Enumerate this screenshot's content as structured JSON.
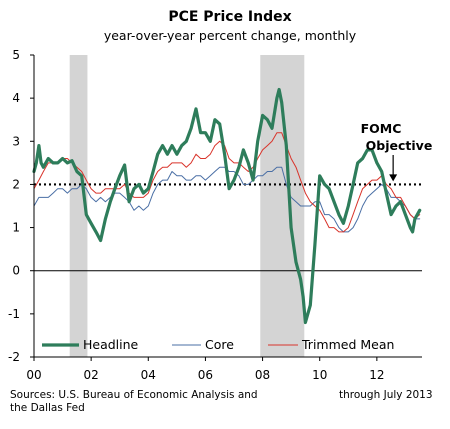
{
  "chart_data": {
    "type": "line",
    "title": "PCE Price Index",
    "subtitle": "year-over-year percent change, monthly",
    "xlabel": "",
    "ylabel": "",
    "xlim": [
      2000.0,
      2013.58
    ],
    "ylim": [
      -2,
      5
    ],
    "y_ticks": [
      "-2",
      "-1",
      "0",
      "1",
      "2",
      "3",
      "4",
      "5"
    ],
    "x_ticks": [
      "00",
      "02",
      "04",
      "06",
      "08",
      "10",
      "12"
    ],
    "x_tick_years": [
      2000,
      2002,
      2004,
      2006,
      2008,
      2010,
      2012
    ],
    "grid": false,
    "legend_position": "bottom",
    "recessions": [
      [
        2001.25,
        2001.87
      ],
      [
        2007.92,
        2009.46
      ]
    ],
    "reference_line": {
      "value": 2,
      "style": "dotted"
    },
    "series": [
      {
        "name": "Headline",
        "color": "#2e7d5b",
        "width": 3.2,
        "points": [
          [
            2000.0,
            2.3
          ],
          [
            2000.08,
            2.5
          ],
          [
            2000.17,
            2.9
          ],
          [
            2000.25,
            2.5
          ],
          [
            2000.33,
            2.4
          ],
          [
            2000.5,
            2.6
          ],
          [
            2000.67,
            2.5
          ],
          [
            2000.83,
            2.5
          ],
          [
            2001.0,
            2.6
          ],
          [
            2001.17,
            2.5
          ],
          [
            2001.33,
            2.55
          ],
          [
            2001.5,
            2.3
          ],
          [
            2001.67,
            2.2
          ],
          [
            2001.83,
            1.3
          ],
          [
            2002.0,
            1.1
          ],
          [
            2002.17,
            0.9
          ],
          [
            2002.33,
            0.7
          ],
          [
            2002.5,
            1.2
          ],
          [
            2002.67,
            1.6
          ],
          [
            2002.83,
            1.9
          ],
          [
            2003.0,
            2.2
          ],
          [
            2003.17,
            2.45
          ],
          [
            2003.33,
            1.6
          ],
          [
            2003.5,
            1.9
          ],
          [
            2003.67,
            2.0
          ],
          [
            2003.83,
            1.8
          ],
          [
            2004.0,
            1.9
          ],
          [
            2004.17,
            2.3
          ],
          [
            2004.33,
            2.7
          ],
          [
            2004.5,
            2.9
          ],
          [
            2004.67,
            2.7
          ],
          [
            2004.83,
            2.9
          ],
          [
            2005.0,
            2.7
          ],
          [
            2005.17,
            2.9
          ],
          [
            2005.33,
            3.0
          ],
          [
            2005.5,
            3.3
          ],
          [
            2005.67,
            3.75
          ],
          [
            2005.83,
            3.2
          ],
          [
            2006.0,
            3.2
          ],
          [
            2006.17,
            3.0
          ],
          [
            2006.33,
            3.5
          ],
          [
            2006.5,
            3.4
          ],
          [
            2006.67,
            2.7
          ],
          [
            2006.83,
            1.9
          ],
          [
            2007.0,
            2.1
          ],
          [
            2007.17,
            2.4
          ],
          [
            2007.33,
            2.8
          ],
          [
            2007.5,
            2.5
          ],
          [
            2007.67,
            2.1
          ],
          [
            2007.83,
            3.0
          ],
          [
            2008.0,
            3.6
          ],
          [
            2008.17,
            3.5
          ],
          [
            2008.33,
            3.3
          ],
          [
            2008.5,
            4.0
          ],
          [
            2008.58,
            4.2
          ],
          [
            2008.67,
            3.9
          ],
          [
            2008.83,
            2.9
          ],
          [
            2009.0,
            1.0
          ],
          [
            2009.17,
            0.2
          ],
          [
            2009.33,
            -0.2
          ],
          [
            2009.42,
            -0.6
          ],
          [
            2009.5,
            -1.2
          ],
          [
            2009.67,
            -0.8
          ],
          [
            2009.83,
            0.6
          ],
          [
            2010.0,
            2.2
          ],
          [
            2010.17,
            2.0
          ],
          [
            2010.33,
            1.9
          ],
          [
            2010.5,
            1.6
          ],
          [
            2010.67,
            1.3
          ],
          [
            2010.83,
            1.1
          ],
          [
            2011.0,
            1.5
          ],
          [
            2011.17,
            2.0
          ],
          [
            2011.33,
            2.5
          ],
          [
            2011.5,
            2.6
          ],
          [
            2011.67,
            2.8
          ],
          [
            2011.83,
            2.8
          ],
          [
            2012.0,
            2.5
          ],
          [
            2012.17,
            2.3
          ],
          [
            2012.33,
            1.8
          ],
          [
            2012.5,
            1.3
          ],
          [
            2012.67,
            1.5
          ],
          [
            2012.83,
            1.6
          ],
          [
            2013.0,
            1.3
          ],
          [
            2013.17,
            1.0
          ],
          [
            2013.25,
            0.9
          ],
          [
            2013.33,
            1.2
          ],
          [
            2013.5,
            1.4
          ]
        ]
      },
      {
        "name": "Core",
        "color": "#4a6fa5",
        "width": 1,
        "points": [
          [
            2000.0,
            1.5
          ],
          [
            2000.17,
            1.7
          ],
          [
            2000.33,
            1.7
          ],
          [
            2000.5,
            1.7
          ],
          [
            2000.67,
            1.8
          ],
          [
            2000.83,
            1.9
          ],
          [
            2001.0,
            1.9
          ],
          [
            2001.17,
            1.8
          ],
          [
            2001.33,
            1.9
          ],
          [
            2001.5,
            1.9
          ],
          [
            2001.67,
            2.0
          ],
          [
            2001.83,
            1.9
          ],
          [
            2002.0,
            1.7
          ],
          [
            2002.17,
            1.6
          ],
          [
            2002.33,
            1.7
          ],
          [
            2002.5,
            1.6
          ],
          [
            2002.67,
            1.7
          ],
          [
            2002.83,
            1.8
          ],
          [
            2003.0,
            1.8
          ],
          [
            2003.17,
            1.7
          ],
          [
            2003.33,
            1.6
          ],
          [
            2003.5,
            1.4
          ],
          [
            2003.67,
            1.5
          ],
          [
            2003.83,
            1.4
          ],
          [
            2004.0,
            1.5
          ],
          [
            2004.17,
            1.8
          ],
          [
            2004.33,
            2.0
          ],
          [
            2004.5,
            2.1
          ],
          [
            2004.67,
            2.1
          ],
          [
            2004.83,
            2.3
          ],
          [
            2005.0,
            2.2
          ],
          [
            2005.17,
            2.2
          ],
          [
            2005.33,
            2.1
          ],
          [
            2005.5,
            2.1
          ],
          [
            2005.67,
            2.2
          ],
          [
            2005.83,
            2.2
          ],
          [
            2006.0,
            2.1
          ],
          [
            2006.17,
            2.2
          ],
          [
            2006.33,
            2.3
          ],
          [
            2006.5,
            2.4
          ],
          [
            2006.67,
            2.4
          ],
          [
            2006.83,
            2.3
          ],
          [
            2007.0,
            2.3
          ],
          [
            2007.17,
            2.2
          ],
          [
            2007.33,
            2.0
          ],
          [
            2007.5,
            2.0
          ],
          [
            2007.67,
            2.1
          ],
          [
            2007.83,
            2.2
          ],
          [
            2008.0,
            2.2
          ],
          [
            2008.17,
            2.3
          ],
          [
            2008.33,
            2.3
          ],
          [
            2008.5,
            2.4
          ],
          [
            2008.67,
            2.4
          ],
          [
            2008.83,
            2.0
          ],
          [
            2009.0,
            1.7
          ],
          [
            2009.17,
            1.6
          ],
          [
            2009.33,
            1.5
          ],
          [
            2009.5,
            1.5
          ],
          [
            2009.67,
            1.5
          ],
          [
            2009.83,
            1.6
          ],
          [
            2010.0,
            1.6
          ],
          [
            2010.17,
            1.3
          ],
          [
            2010.33,
            1.3
          ],
          [
            2010.5,
            1.2
          ],
          [
            2010.67,
            1.0
          ],
          [
            2010.83,
            0.9
          ],
          [
            2011.0,
            0.9
          ],
          [
            2011.17,
            1.0
          ],
          [
            2011.33,
            1.2
          ],
          [
            2011.5,
            1.5
          ],
          [
            2011.67,
            1.7
          ],
          [
            2011.83,
            1.8
          ],
          [
            2012.0,
            1.9
          ],
          [
            2012.17,
            2.0
          ],
          [
            2012.33,
            1.9
          ],
          [
            2012.5,
            1.7
          ],
          [
            2012.67,
            1.7
          ],
          [
            2012.83,
            1.6
          ],
          [
            2013.0,
            1.5
          ],
          [
            2013.17,
            1.3
          ],
          [
            2013.33,
            1.2
          ],
          [
            2013.5,
            1.2
          ]
        ]
      },
      {
        "name": "Trimmed Mean",
        "color": "#d9342b",
        "width": 1,
        "points": [
          [
            2000.0,
            1.9
          ],
          [
            2000.17,
            2.1
          ],
          [
            2000.33,
            2.3
          ],
          [
            2000.5,
            2.5
          ],
          [
            2000.67,
            2.5
          ],
          [
            2000.83,
            2.5
          ],
          [
            2001.0,
            2.6
          ],
          [
            2001.17,
            2.6
          ],
          [
            2001.33,
            2.5
          ],
          [
            2001.5,
            2.4
          ],
          [
            2001.67,
            2.3
          ],
          [
            2001.83,
            2.1
          ],
          [
            2002.0,
            1.9
          ],
          [
            2002.17,
            1.8
          ],
          [
            2002.33,
            1.8
          ],
          [
            2002.5,
            1.9
          ],
          [
            2002.67,
            1.9
          ],
          [
            2002.83,
            1.9
          ],
          [
            2003.0,
            1.9
          ],
          [
            2003.17,
            2.0
          ],
          [
            2003.33,
            1.8
          ],
          [
            2003.5,
            1.7
          ],
          [
            2003.67,
            1.7
          ],
          [
            2003.83,
            1.7
          ],
          [
            2004.0,
            1.8
          ],
          [
            2004.17,
            2.1
          ],
          [
            2004.33,
            2.3
          ],
          [
            2004.5,
            2.4
          ],
          [
            2004.67,
            2.4
          ],
          [
            2004.83,
            2.5
          ],
          [
            2005.0,
            2.5
          ],
          [
            2005.17,
            2.5
          ],
          [
            2005.33,
            2.4
          ],
          [
            2005.5,
            2.5
          ],
          [
            2005.67,
            2.7
          ],
          [
            2005.83,
            2.6
          ],
          [
            2006.0,
            2.6
          ],
          [
            2006.17,
            2.7
          ],
          [
            2006.33,
            2.9
          ],
          [
            2006.5,
            3.0
          ],
          [
            2006.67,
            2.9
          ],
          [
            2006.83,
            2.6
          ],
          [
            2007.0,
            2.5
          ],
          [
            2007.17,
            2.5
          ],
          [
            2007.33,
            2.4
          ],
          [
            2007.5,
            2.3
          ],
          [
            2007.67,
            2.4
          ],
          [
            2007.83,
            2.6
          ],
          [
            2008.0,
            2.8
          ],
          [
            2008.17,
            2.9
          ],
          [
            2008.33,
            3.0
          ],
          [
            2008.5,
            3.2
          ],
          [
            2008.67,
            3.2
          ],
          [
            2008.83,
            2.9
          ],
          [
            2009.0,
            2.6
          ],
          [
            2009.17,
            2.4
          ],
          [
            2009.33,
            2.1
          ],
          [
            2009.5,
            1.8
          ],
          [
            2009.67,
            1.6
          ],
          [
            2009.83,
            1.5
          ],
          [
            2010.0,
            1.4
          ],
          [
            2010.17,
            1.2
          ],
          [
            2010.33,
            1.0
          ],
          [
            2010.5,
            1.0
          ],
          [
            2010.67,
            0.9
          ],
          [
            2010.83,
            0.9
          ],
          [
            2011.0,
            1.0
          ],
          [
            2011.17,
            1.3
          ],
          [
            2011.33,
            1.6
          ],
          [
            2011.5,
            1.9
          ],
          [
            2011.67,
            2.0
          ],
          [
            2011.83,
            2.1
          ],
          [
            2012.0,
            2.1
          ],
          [
            2012.17,
            2.2
          ],
          [
            2012.33,
            2.0
          ],
          [
            2012.5,
            1.9
          ],
          [
            2012.67,
            1.7
          ],
          [
            2012.83,
            1.7
          ],
          [
            2013.0,
            1.5
          ],
          [
            2013.17,
            1.3
          ],
          [
            2013.33,
            1.2
          ],
          [
            2013.5,
            1.3
          ]
        ]
      }
    ],
    "annotation": {
      "lines": [
        "FOMC",
        "Objective"
      ],
      "points_to": [
        2012.5,
        2.0
      ]
    }
  },
  "footer": {
    "source_line1": "Sources: U.S. Bureau of Economic Analysis and",
    "source_line2": "the Dallas  Fed",
    "through": "through July 2013"
  }
}
